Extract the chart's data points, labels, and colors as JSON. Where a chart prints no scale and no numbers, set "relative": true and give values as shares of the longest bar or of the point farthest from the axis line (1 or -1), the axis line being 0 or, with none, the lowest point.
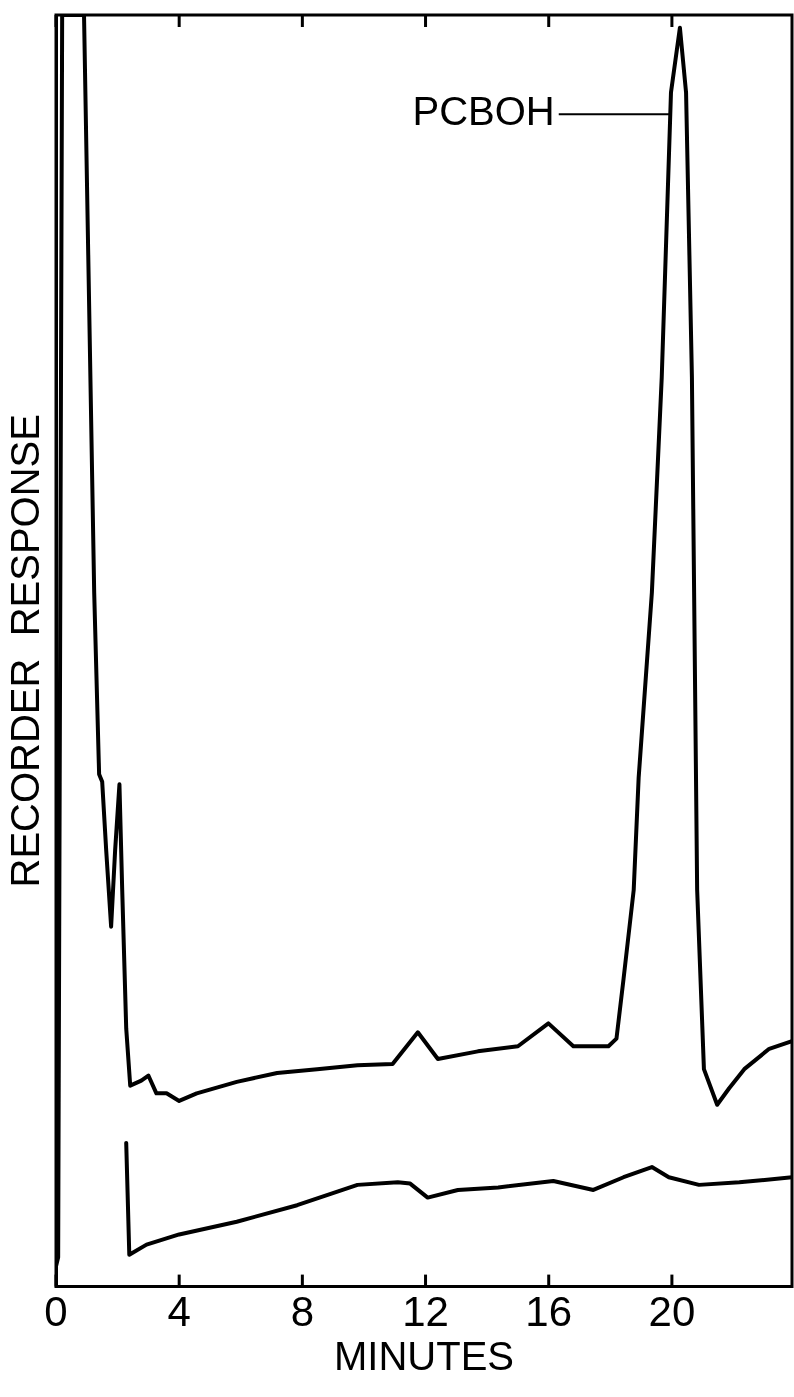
{
  "chart_data": {
    "type": "line",
    "relative": true,
    "xlabel": "MINUTES",
    "ylabel": "RECORDER  RESPONSE",
    "xlim": [
      0,
      23.9
    ],
    "xticks": [
      0,
      4,
      8,
      12,
      16,
      20
    ],
    "legend": false,
    "grid": false,
    "marker": "none",
    "line_style": "solid",
    "annotations": [
      {
        "text": "PCBOH",
        "x": 19.93,
        "y": 0.922
      }
    ],
    "series": [
      {
        "color": "#000000",
        "x": [
          0,
          0.07,
          0.2,
          0.91,
          1.24,
          1.4,
          1.5,
          1.63,
          1.79,
          1.92,
          2.06,
          2.15,
          2.28,
          2.41,
          2.77,
          3.0,
          3.26,
          3.59,
          4.0,
          4.57,
          5.87,
          7.18,
          8.48,
          9.79,
          10.93,
          11.75,
          12.4,
          13.7,
          15.0,
          15.99,
          16.8,
          17.94,
          18.2,
          18.43,
          18.76,
          18.92,
          19.35,
          19.67,
          19.97,
          20.26,
          20.46,
          20.65,
          20.82,
          21.04,
          21.47,
          21.86,
          22.35,
          23.16,
          23.9
        ],
        "values": [
          0.016,
          0.023,
          1.0,
          1.0,
          0.546,
          0.403,
          0.397,
          0.343,
          0.283,
          0.343,
          0.395,
          0.312,
          0.203,
          0.158,
          0.162,
          0.166,
          0.152,
          0.152,
          0.146,
          0.152,
          0.161,
          0.168,
          0.171,
          0.174,
          0.175,
          0.2,
          0.179,
          0.185,
          0.189,
          0.207,
          0.189,
          0.189,
          0.195,
          0.242,
          0.312,
          0.4,
          0.546,
          0.715,
          0.939,
          0.99,
          0.939,
          0.715,
          0.312,
          0.171,
          0.143,
          0.156,
          0.171,
          0.187,
          0.193
        ]
      },
      {
        "color": "#000000",
        "x": [
          2.28,
          2.38,
          2.94,
          4.0,
          5.87,
          7.83,
          9.79,
          11.1,
          11.5,
          12.07,
          13.05,
          14.36,
          16.15,
          17.45,
          18.43,
          19.35,
          19.9,
          20.88,
          22.19,
          23.9
        ],
        "values": [
          0.113,
          0.025,
          0.033,
          0.041,
          0.051,
          0.064,
          0.08,
          0.082,
          0.081,
          0.07,
          0.076,
          0.078,
          0.083,
          0.076,
          0.086,
          0.094,
          0.086,
          0.08,
          0.082,
          0.086
        ]
      }
    ]
  }
}
